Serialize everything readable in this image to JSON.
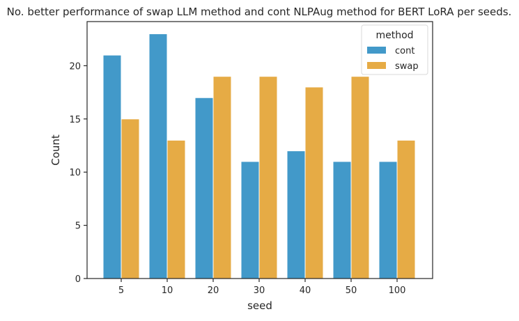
{
  "chart_data": {
    "type": "bar",
    "title": "No. better performance of swap LLM method and cont NLPAug method for BERT LoRA per seeds.",
    "xlabel": "seed",
    "ylabel": "Count",
    "categories": [
      "5",
      "10",
      "20",
      "30",
      "40",
      "50",
      "100"
    ],
    "series": [
      {
        "name": "cont",
        "color": "#4299c9",
        "values": [
          21,
          23,
          17,
          11,
          12,
          11,
          11
        ]
      },
      {
        "name": "swap",
        "color": "#e6ab45",
        "values": [
          15,
          13,
          19,
          19,
          18,
          19,
          13
        ]
      }
    ],
    "ylim": [
      0,
      24.15
    ],
    "yticks": [
      0,
      5,
      10,
      15,
      20
    ],
    "grid": false,
    "legend": {
      "title": "method",
      "placement": "top-right"
    }
  }
}
